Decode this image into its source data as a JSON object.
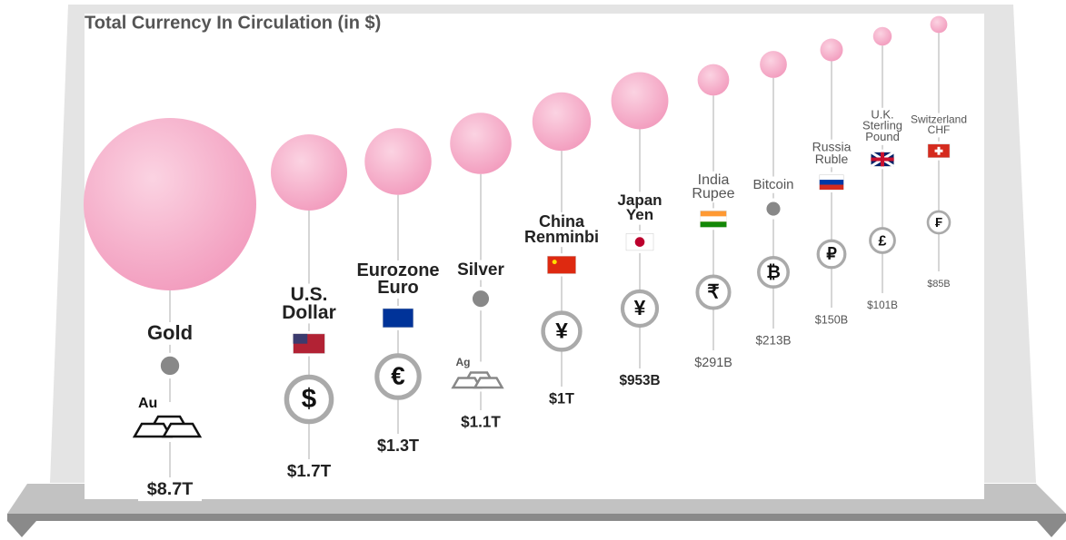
{
  "chart_data": {
    "type": "bubble",
    "title": "Total Currency In Circulation (in $)",
    "categories": [
      "Gold",
      "U.S. Dollar",
      "Eurozone Euro",
      "Silver",
      "China Renminbi",
      "Japan Yen",
      "India Rupee",
      "Bitcoin",
      "Russia Ruble",
      "U.K. Sterling Pound",
      "Switzerland CHF"
    ],
    "values": [
      8700000000000,
      1700000000000,
      1300000000000,
      1100000000000,
      1000000000000,
      953000000000,
      291000000000,
      213000000000,
      150000000000,
      101000000000,
      85000000000
    ],
    "value_labels": [
      "$8.7T",
      "$1.7T",
      "$1.3T",
      "$1.1T",
      "$1T",
      "$953B",
      "$291B",
      "$213B",
      "$150B",
      "$101B",
      "$85B"
    ],
    "symbols": [
      "Au",
      "$",
      "€",
      "Ag",
      "¥",
      "¥",
      "₹",
      "₿",
      "₽",
      "£",
      "₣"
    ],
    "color": "#f4a7c4"
  }
}
